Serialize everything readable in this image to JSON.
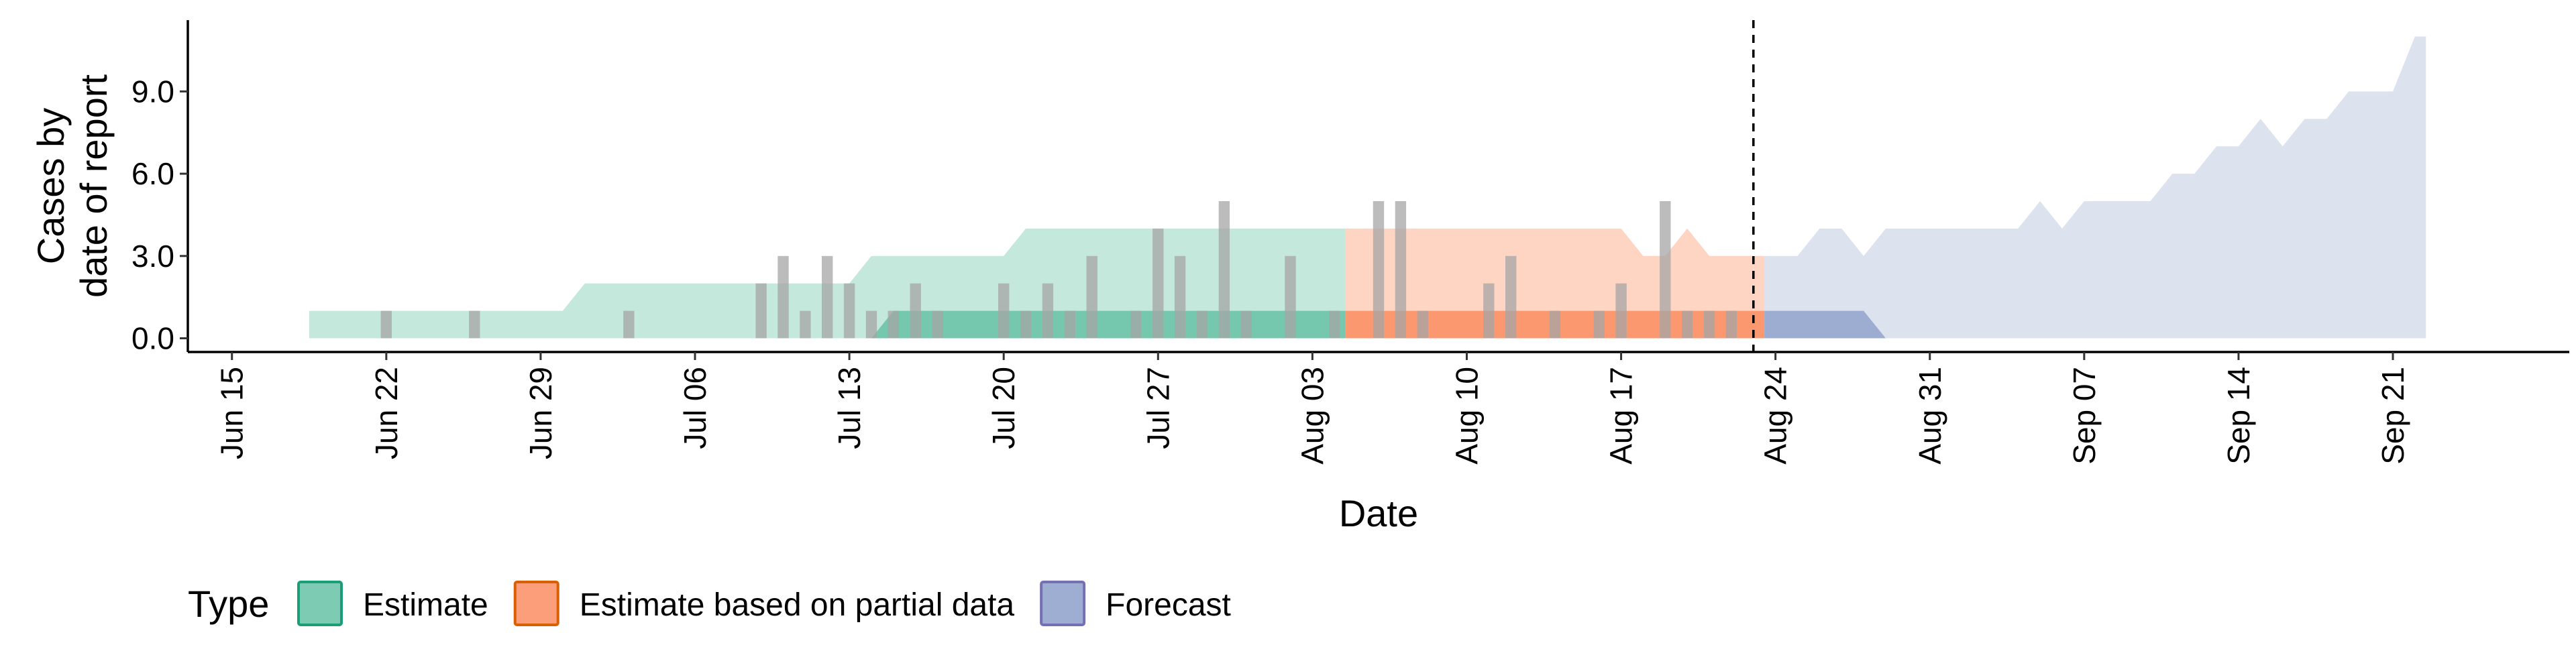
{
  "chart_data": {
    "type": "area",
    "xlabel": "Date",
    "ylabel_lines": [
      "Cases by",
      "date of report"
    ],
    "x_domain": [
      "2020-06-13",
      "2020-09-29"
    ],
    "y_range": [
      -0.5,
      11.6
    ],
    "y_ticks": [
      0,
      3,
      6,
      9
    ],
    "y_tick_labels": [
      "0.0",
      "3.0",
      "6.0",
      "9.0"
    ],
    "x_ticks": [
      "2020-06-15",
      "2020-06-22",
      "2020-06-29",
      "2020-07-06",
      "2020-07-13",
      "2020-07-20",
      "2020-07-27",
      "2020-08-03",
      "2020-08-10",
      "2020-08-17",
      "2020-08-24",
      "2020-08-31",
      "2020-09-07",
      "2020-09-14",
      "2020-09-21"
    ],
    "x_tick_labels": [
      "Jun 15",
      "Jun 22",
      "Jun 29",
      "Jul 06",
      "Jul 13",
      "Jul 20",
      "Jul 27",
      "Aug 03",
      "Aug 10",
      "Aug 17",
      "Aug 24",
      "Aug 31",
      "Sep 07",
      "Sep 14",
      "Sep 21"
    ],
    "forecast_date": "2020-08-23",
    "legend": {
      "title": "Type",
      "position": "bottom-left",
      "items": [
        {
          "label": "Estimate",
          "fill": "#66c2a5",
          "stroke": "#1b9e77"
        },
        {
          "label": "Estimate based on partial data",
          "fill": "#fc8d62",
          "stroke": "#d95f02"
        },
        {
          "label": "Forecast",
          "fill": "#8da0cb",
          "stroke": "#7570b3"
        }
      ]
    },
    "observed_cases": {
      "color": "#a6a6a6",
      "dates": [
        "2020-06-22",
        "2020-06-26",
        "2020-07-03",
        "2020-07-09",
        "2020-07-10",
        "2020-07-11",
        "2020-07-12",
        "2020-07-13",
        "2020-07-14",
        "2020-07-15",
        "2020-07-16",
        "2020-07-17",
        "2020-07-20",
        "2020-07-21",
        "2020-07-22",
        "2020-07-23",
        "2020-07-24",
        "2020-07-26",
        "2020-07-27",
        "2020-07-28",
        "2020-07-29",
        "2020-07-30",
        "2020-07-31",
        "2020-08-02",
        "2020-08-04",
        "2020-08-06",
        "2020-08-07",
        "2020-08-08",
        "2020-08-11",
        "2020-08-12",
        "2020-08-14",
        "2020-08-16",
        "2020-08-17",
        "2020-08-19",
        "2020-08-20",
        "2020-08-21",
        "2020-08-22"
      ],
      "values": [
        1,
        1,
        1,
        2,
        3,
        1,
        3,
        2,
        1,
        1,
        2,
        1,
        2,
        1,
        2,
        1,
        3,
        1,
        4,
        3,
        1,
        5,
        1,
        3,
        1,
        5,
        5,
        1,
        2,
        3,
        1,
        1,
        2,
        5,
        1,
        1,
        1
      ]
    },
    "series": [
      {
        "name": "Estimate",
        "fill": "#66c2a5",
        "bands": [
          {
            "opacity": 0.38,
            "dates": [
              "2020-06-19",
              "2020-06-20",
              "2020-06-21",
              "2020-06-22",
              "2020-06-23",
              "2020-06-24",
              "2020-06-25",
              "2020-06-26",
              "2020-06-27",
              "2020-06-28",
              "2020-06-29",
              "2020-06-30",
              "2020-07-01",
              "2020-07-02",
              "2020-07-03",
              "2020-07-04",
              "2020-07-05",
              "2020-07-06",
              "2020-07-07",
              "2020-07-08",
              "2020-07-09",
              "2020-07-10",
              "2020-07-11",
              "2020-07-12",
              "2020-07-13",
              "2020-07-14",
              "2020-07-15",
              "2020-07-16",
              "2020-07-17",
              "2020-07-18",
              "2020-07-19",
              "2020-07-20",
              "2020-07-21",
              "2020-07-22",
              "2020-07-23",
              "2020-07-24",
              "2020-07-25",
              "2020-07-26",
              "2020-07-27",
              "2020-07-28",
              "2020-07-29",
              "2020-07-30",
              "2020-07-31",
              "2020-08-01",
              "2020-08-02",
              "2020-08-03",
              "2020-08-04"
            ],
            "lower": [
              0,
              0,
              0,
              0,
              0,
              0,
              0,
              0,
              0,
              0,
              0,
              0,
              0,
              0,
              0,
              0,
              0,
              0,
              0,
              0,
              0,
              0,
              0,
              0,
              0,
              0,
              0,
              0,
              0,
              0,
              0,
              0,
              0,
              0,
              0,
              0,
              0,
              0,
              0,
              0,
              0,
              0,
              0,
              0,
              0,
              0,
              0
            ],
            "upper": [
              1,
              1,
              1,
              1,
              1,
              1,
              1,
              1,
              1,
              1,
              1,
              1,
              2,
              2,
              2,
              2,
              2,
              2,
              2,
              2,
              2,
              2,
              2,
              2,
              2,
              3,
              3,
              3,
              3,
              3,
              3,
              3,
              4,
              4,
              4,
              4,
              4,
              4,
              4,
              4,
              4,
              4,
              4,
              4,
              4,
              4,
              4
            ]
          },
          {
            "opacity": 0.85,
            "dates": [
              "2020-07-14",
              "2020-07-15",
              "2020-07-16",
              "2020-07-17",
              "2020-07-18",
              "2020-07-19",
              "2020-07-20",
              "2020-07-21",
              "2020-07-22",
              "2020-07-23",
              "2020-07-24",
              "2020-07-25",
              "2020-07-26",
              "2020-07-27",
              "2020-07-28",
              "2020-07-29",
              "2020-07-30",
              "2020-07-31",
              "2020-08-01",
              "2020-08-02",
              "2020-08-03",
              "2020-08-04"
            ],
            "lower": [
              0,
              0,
              0,
              0,
              0,
              0,
              0,
              0,
              0,
              0,
              0,
              0,
              0,
              0,
              0,
              0,
              0,
              0,
              0,
              0,
              0,
              0
            ],
            "upper": [
              0,
              1,
              1,
              1,
              1,
              1,
              1,
              1,
              1,
              1,
              1,
              1,
              1,
              1,
              1,
              1,
              1,
              1,
              1,
              1,
              1,
              1
            ]
          }
        ]
      },
      {
        "name": "Estimate based on partial data",
        "fill": "#fc8d62",
        "bands": [
          {
            "opacity": 0.38,
            "dates": [
              "2020-08-05",
              "2020-08-06",
              "2020-08-07",
              "2020-08-08",
              "2020-08-09",
              "2020-08-10",
              "2020-08-11",
              "2020-08-12",
              "2020-08-13",
              "2020-08-14",
              "2020-08-15",
              "2020-08-16",
              "2020-08-17",
              "2020-08-18",
              "2020-08-19",
              "2020-08-20",
              "2020-08-21",
              "2020-08-22",
              "2020-08-23"
            ],
            "lower": [
              0,
              0,
              0,
              0,
              0,
              0,
              0,
              0,
              0,
              0,
              0,
              0,
              0,
              0,
              0,
              0,
              0,
              0,
              0
            ],
            "upper": [
              4,
              4,
              4,
              4,
              4,
              4,
              4,
              4,
              4,
              4,
              4,
              4,
              4,
              3,
              3,
              4,
              3,
              3,
              3
            ]
          },
          {
            "opacity": 0.85,
            "dates": [
              "2020-08-05",
              "2020-08-06",
              "2020-08-07",
              "2020-08-08",
              "2020-08-09",
              "2020-08-10",
              "2020-08-11",
              "2020-08-12",
              "2020-08-13",
              "2020-08-14",
              "2020-08-15",
              "2020-08-16",
              "2020-08-17",
              "2020-08-18",
              "2020-08-19",
              "2020-08-20",
              "2020-08-21",
              "2020-08-22",
              "2020-08-23"
            ],
            "lower": [
              0,
              0,
              0,
              0,
              0,
              0,
              0,
              0,
              0,
              0,
              0,
              0,
              0,
              0,
              0,
              0,
              0,
              0,
              0
            ],
            "upper": [
              1,
              1,
              1,
              1,
              1,
              1,
              1,
              1,
              1,
              1,
              1,
              1,
              1,
              1,
              1,
              1,
              1,
              1,
              1
            ]
          }
        ]
      },
      {
        "name": "Forecast",
        "fill": "#8da0cb",
        "bands": [
          {
            "opacity": 0.3,
            "dates": [
              "2020-08-24",
              "2020-08-25",
              "2020-08-26",
              "2020-08-27",
              "2020-08-28",
              "2020-08-29",
              "2020-08-30",
              "2020-08-31",
              "2020-09-01",
              "2020-09-02",
              "2020-09-03",
              "2020-09-04",
              "2020-09-05",
              "2020-09-06",
              "2020-09-07",
              "2020-09-08",
              "2020-09-09",
              "2020-09-10",
              "2020-09-11",
              "2020-09-12",
              "2020-09-13",
              "2020-09-14",
              "2020-09-15",
              "2020-09-16",
              "2020-09-17",
              "2020-09-18",
              "2020-09-19",
              "2020-09-20",
              "2020-09-21",
              "2020-09-22"
            ],
            "lower": [
              0,
              0,
              0,
              0,
              0,
              0,
              0,
              0,
              0,
              0,
              0,
              0,
              0,
              0,
              0,
              0,
              0,
              0,
              0,
              0,
              0,
              0,
              0,
              0,
              0,
              0,
              0,
              0,
              0,
              0
            ],
            "upper": [
              3,
              3,
              4,
              4,
              3,
              4,
              4,
              4,
              4,
              4,
              4,
              4,
              5,
              4,
              5,
              5,
              5,
              5,
              6,
              6,
              7,
              7,
              8,
              7,
              8,
              8,
              9,
              9,
              9,
              11
            ]
          },
          {
            "opacity": 0.8,
            "dates": [
              "2020-08-24",
              "2020-08-25",
              "2020-08-26",
              "2020-08-27",
              "2020-08-28",
              "2020-08-29"
            ],
            "lower": [
              0,
              0,
              0,
              0,
              0,
              0
            ],
            "upper": [
              1,
              1,
              1,
              1,
              1,
              0
            ]
          }
        ]
      }
    ]
  }
}
